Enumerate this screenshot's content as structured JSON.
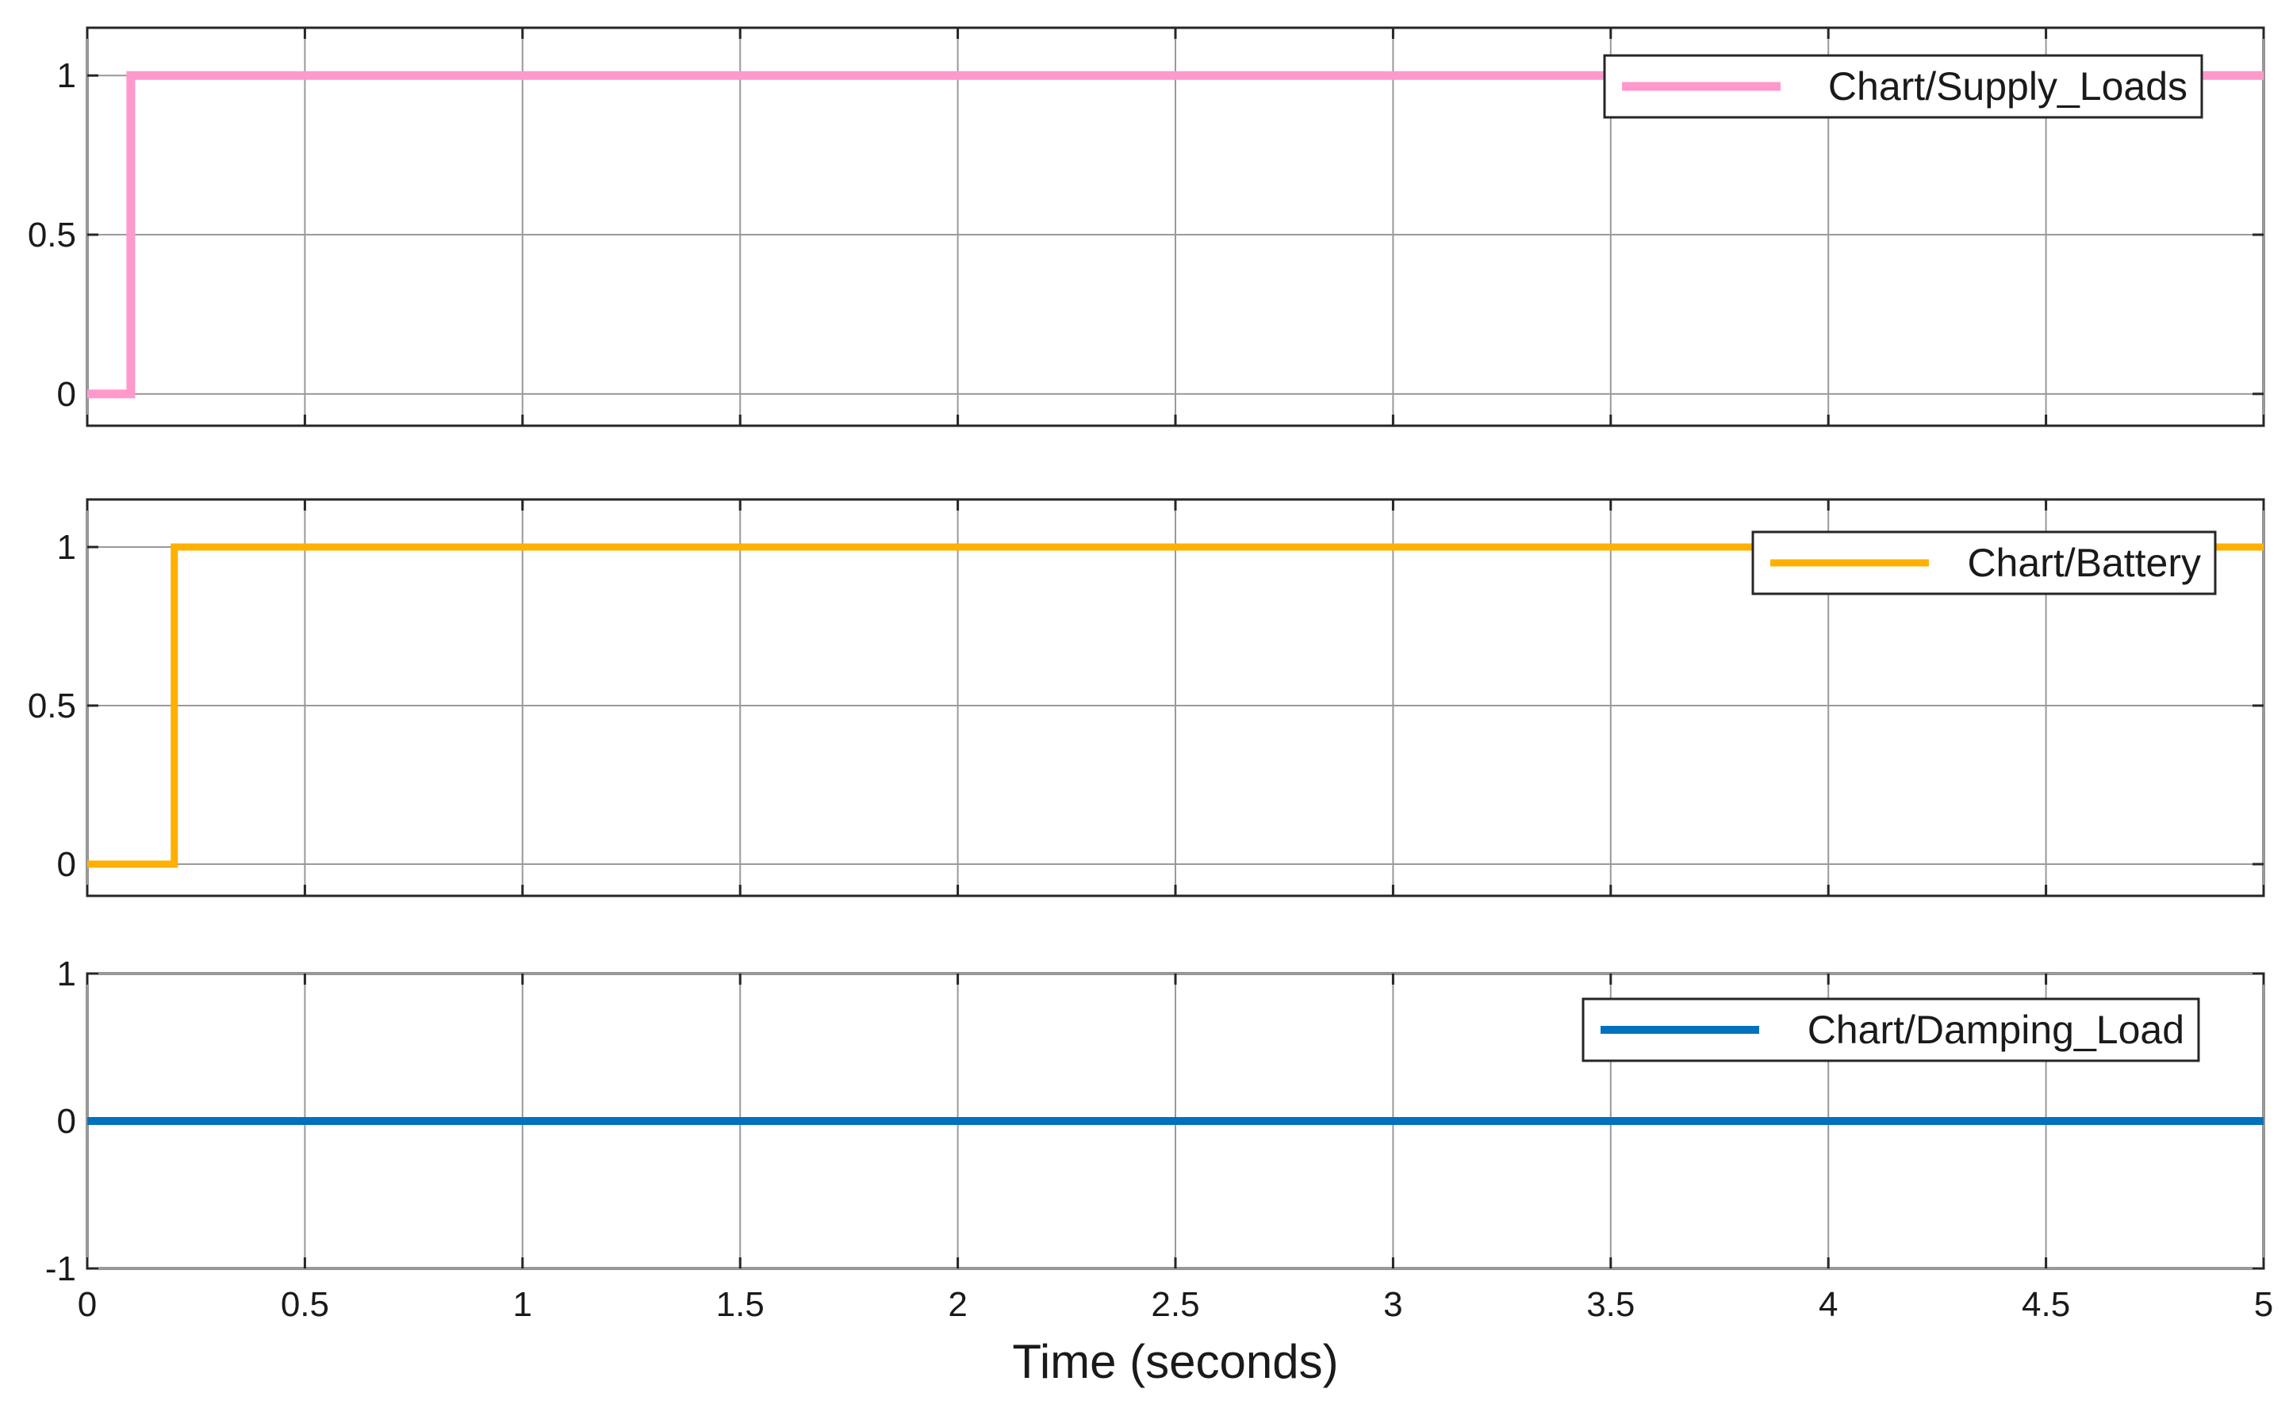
{
  "chart_data": [
    {
      "type": "line",
      "series": [
        {
          "name": "Chart/Supply_Loads",
          "color": "#ff99cc",
          "x": [
            0,
            0.1,
            0.1,
            5
          ],
          "y": [
            0,
            0,
            1,
            1
          ]
        }
      ],
      "ylim": [
        -0.1,
        1.15
      ],
      "yticks": [
        0,
        0.5,
        1
      ],
      "ytick_labels": [
        "0",
        "0.5",
        "1"
      ],
      "xlim": [
        0,
        5
      ],
      "xticks": [
        0,
        0.5,
        1,
        1.5,
        2,
        2.5,
        3,
        3.5,
        4,
        4.5,
        5
      ],
      "grid": true,
      "legend_position": "top-right"
    },
    {
      "type": "line",
      "series": [
        {
          "name": "Chart/Battery",
          "color": "#ffb000",
          "x": [
            0,
            0.2,
            0.2,
            5
          ],
          "y": [
            0,
            0,
            1,
            1
          ]
        }
      ],
      "ylim": [
        -0.1,
        1.15
      ],
      "yticks": [
        0,
        0.5,
        1
      ],
      "ytick_labels": [
        "0",
        "0.5",
        "1"
      ],
      "xlim": [
        0,
        5
      ],
      "xticks": [
        0,
        0.5,
        1,
        1.5,
        2,
        2.5,
        3,
        3.5,
        4,
        4.5,
        5
      ],
      "grid": true,
      "legend_position": "top-right"
    },
    {
      "type": "line",
      "series": [
        {
          "name": "Chart/Damping_Load",
          "color": "#0072bd",
          "x": [
            0,
            5
          ],
          "y": [
            0,
            0
          ]
        }
      ],
      "ylim": [
        -1,
        1
      ],
      "yticks": [
        -1,
        0,
        1
      ],
      "ytick_labels": [
        "-1",
        "0",
        "1"
      ],
      "xlim": [
        0,
        5
      ],
      "xticks": [
        0,
        0.5,
        1,
        1.5,
        2,
        2.5,
        3,
        3.5,
        4,
        4.5,
        5
      ],
      "xtick_labels": [
        "0",
        "0.5",
        "1",
        "1.5",
        "2",
        "2.5",
        "3",
        "3.5",
        "4",
        "4.5",
        "5"
      ],
      "xlabel": "Time (seconds)",
      "grid": true,
      "legend_position": "top-right"
    }
  ]
}
